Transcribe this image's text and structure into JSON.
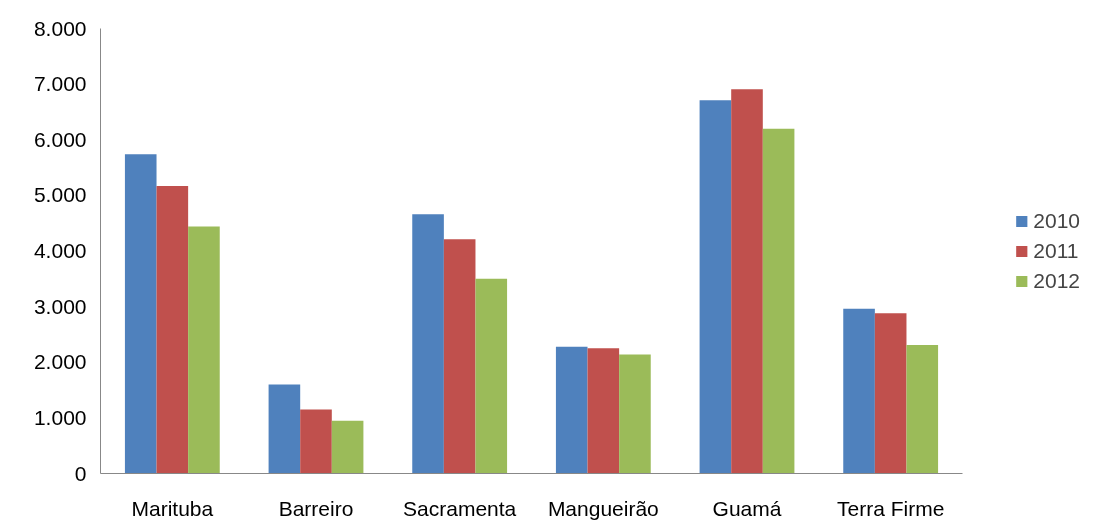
{
  "chart_data": {
    "type": "bar",
    "categories": [
      "Marituba",
      "Barreiro",
      "Sacramenta",
      "Mangueirão",
      "Guamá",
      "Terra Firme"
    ],
    "series": [
      {
        "name": "2010",
        "color": "#4f81bd",
        "values": [
          5740,
          1600,
          4660,
          2280,
          6710,
          2960
        ]
      },
      {
        "name": "2011",
        "color": "#c0504d",
        "values": [
          5170,
          1150,
          4210,
          2250,
          6910,
          2880
        ]
      },
      {
        "name": "2012",
        "color": "#9bbb59",
        "values": [
          4440,
          950,
          3500,
          2140,
          6200,
          2310
        ]
      }
    ],
    "ylim": [
      0,
      8000
    ],
    "yticks": [
      {
        "value": 0,
        "label": "0"
      },
      {
        "value": 1000,
        "label": "1.000"
      },
      {
        "value": 2000,
        "label": "2.000"
      },
      {
        "value": 3000,
        "label": "3.000"
      },
      {
        "value": 4000,
        "label": "4.000"
      },
      {
        "value": 5000,
        "label": "5.000"
      },
      {
        "value": 6000,
        "label": "6.000"
      },
      {
        "value": 7000,
        "label": "7.000"
      },
      {
        "value": 8000,
        "label": "8.000"
      }
    ],
    "grid": false,
    "legend": "right"
  }
}
